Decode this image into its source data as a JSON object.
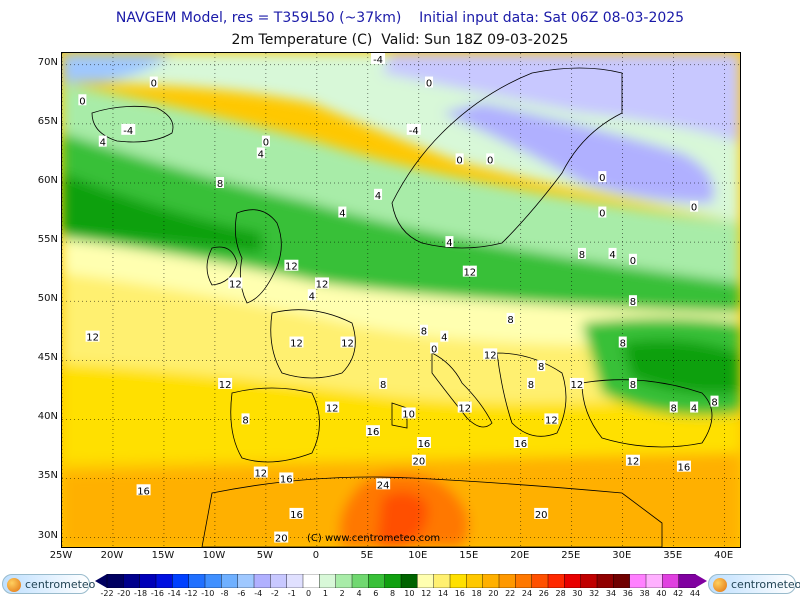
{
  "header": {
    "line1": "NAVGEM Model, res = T359L50 (~37km)    Initial input data: Sat 06Z 08-03-2025",
    "line2": "2m Temperature (C)  Valid: Sun 18Z 09-03-2025"
  },
  "axes": {
    "lat_labels": [
      "70N",
      "65N",
      "60N",
      "55N",
      "50N",
      "45N",
      "40N",
      "35N",
      "30N"
    ],
    "lon_labels": [
      "25W",
      "20W",
      "15W",
      "10W",
      "5W",
      "0",
      "5E",
      "10E",
      "15E",
      "20E",
      "25E",
      "30E",
      "35E",
      "40E"
    ]
  },
  "watermark": "(C)  www.centrometeo.com",
  "colorbar": {
    "labels": [
      "-22",
      "-20",
      "-18",
      "-16",
      "-14",
      "-12",
      "-10",
      "-8",
      "-6",
      "-4",
      "-2",
      "-1",
      "0",
      "1",
      "2",
      "4",
      "6",
      "8",
      "10",
      "12",
      "14",
      "16",
      "18",
      "20",
      "22",
      "24",
      "26",
      "28",
      "30",
      "32",
      "34",
      "36",
      "38",
      "40",
      "42",
      "44"
    ],
    "colors": [
      "#000060",
      "#00008c",
      "#0000b8",
      "#0010e0",
      "#0040ff",
      "#2070ff",
      "#4090ff",
      "#6fb0ff",
      "#9fc8ff",
      "#b0b0ff",
      "#c8c8ff",
      "#e0e0ff",
      "#ffffff",
      "#d8f8d8",
      "#a8eca8",
      "#70d870",
      "#38c038",
      "#10a010",
      "#006400",
      "#ffffb0",
      "#fff070",
      "#ffe000",
      "#ffc800",
      "#ffb000",
      "#ff9800",
      "#ff7800",
      "#ff5000",
      "#ff2800",
      "#e80000",
      "#c00000",
      "#900000",
      "#700000",
      "#ff80ff",
      "#ffb0ff",
      "#e040e0",
      "#8000a0"
    ]
  },
  "logos": {
    "left": "centrometeo",
    "right": "centrometeo"
  },
  "contour_labels": [
    {
      "t": "-4",
      "lon": 6,
      "lat": 70.5
    },
    {
      "t": "0",
      "lon": -16,
      "lat": 68.5
    },
    {
      "t": "0",
      "lon": -23,
      "lat": 67
    },
    {
      "t": "-4",
      "lon": -18.5,
      "lat": 64.5
    },
    {
      "t": "4",
      "lon": -21,
      "lat": 63.5
    },
    {
      "t": "0",
      "lon": -5,
      "lat": 63.5
    },
    {
      "t": "4",
      "lon": -5.5,
      "lat": 62.5
    },
    {
      "t": "0",
      "lon": 11,
      "lat": 68.5
    },
    {
      "t": "-4",
      "lon": 9.5,
      "lat": 64.5
    },
    {
      "t": "0",
      "lon": 14,
      "lat": 62
    },
    {
      "t": "4",
      "lon": 6,
      "lat": 59
    },
    {
      "t": "0",
      "lon": 17,
      "lat": 62
    },
    {
      "t": "0",
      "lon": 28,
      "lat": 60.5
    },
    {
      "t": "0",
      "lon": 28,
      "lat": 57.5
    },
    {
      "t": "0",
      "lon": 37,
      "lat": 58
    },
    {
      "t": "8",
      "lon": -9.5,
      "lat": 60
    },
    {
      "t": "4",
      "lon": 2.5,
      "lat": 57.5
    },
    {
      "t": "12",
      "lon": -2.5,
      "lat": 53
    },
    {
      "t": "12",
      "lon": -8,
      "lat": 51.5
    },
    {
      "t": "12",
      "lon": 0.5,
      "lat": 51.5
    },
    {
      "t": "4",
      "lon": 13,
      "lat": 55
    },
    {
      "t": "8",
      "lon": 26,
      "lat": 54
    },
    {
      "t": "12",
      "lon": 15,
      "lat": 52.5
    },
    {
      "t": "4",
      "lon": 29,
      "lat": 54
    },
    {
      "t": "0",
      "lon": 31,
      "lat": 53.5
    },
    {
      "t": "8",
      "lon": 31,
      "lat": 50
    },
    {
      "t": "12",
      "lon": -22,
      "lat": 47
    },
    {
      "t": "12",
      "lon": -2,
      "lat": 46.5
    },
    {
      "t": "4",
      "lon": -0.5,
      "lat": 50.5
    },
    {
      "t": "12",
      "lon": 3,
      "lat": 46.5
    },
    {
      "t": "8",
      "lon": 10.5,
      "lat": 47.5
    },
    {
      "t": "4",
      "lon": 12.5,
      "lat": 47
    },
    {
      "t": "0",
      "lon": 11.5,
      "lat": 46
    },
    {
      "t": "8",
      "lon": 19,
      "lat": 48.5
    },
    {
      "t": "12",
      "lon": 17,
      "lat": 45.5
    },
    {
      "t": "8",
      "lon": 22,
      "lat": 44.5
    },
    {
      "t": "8",
      "lon": 30,
      "lat": 46.5
    },
    {
      "t": "12",
      "lon": -9,
      "lat": 43
    },
    {
      "t": "8",
      "lon": 21,
      "lat": 43
    },
    {
      "t": "12",
      "lon": 25.5,
      "lat": 43
    },
    {
      "t": "12",
      "lon": 1.5,
      "lat": 41
    },
    {
      "t": "8",
      "lon": 6.5,
      "lat": 43
    },
    {
      "t": "12",
      "lon": 14.5,
      "lat": 41
    },
    {
      "t": "8",
      "lon": 31,
      "lat": 43
    },
    {
      "t": "8",
      "lon": -7,
      "lat": 40
    },
    {
      "t": "10",
      "lon": 9,
      "lat": 40.5
    },
    {
      "t": "16",
      "lon": 5.5,
      "lat": 39
    },
    {
      "t": "12",
      "lon": 23,
      "lat": 40
    },
    {
      "t": "8",
      "lon": 35,
      "lat": 41
    },
    {
      "t": "4",
      "lon": 37,
      "lat": 41
    },
    {
      "t": "8",
      "lon": 39,
      "lat": 41.5
    },
    {
      "t": "16",
      "lon": 10.5,
      "lat": 38
    },
    {
      "t": "16",
      "lon": 20,
      "lat": 38
    },
    {
      "t": "20",
      "lon": 10,
      "lat": 36.5
    },
    {
      "t": "12",
      "lon": 31,
      "lat": 36.5
    },
    {
      "t": "16",
      "lon": 36,
      "lat": 36
    },
    {
      "t": "12",
      "lon": -5.5,
      "lat": 35.5
    },
    {
      "t": "16",
      "lon": -3,
      "lat": 35
    },
    {
      "t": "16",
      "lon": -17,
      "lat": 34
    },
    {
      "t": "24",
      "lon": 6.5,
      "lat": 34.5
    },
    {
      "t": "16",
      "lon": -2,
      "lat": 32
    },
    {
      "t": "20",
      "lon": 22,
      "lat": 32
    },
    {
      "t": "20",
      "lon": -3.5,
      "lat": 30
    }
  ]
}
